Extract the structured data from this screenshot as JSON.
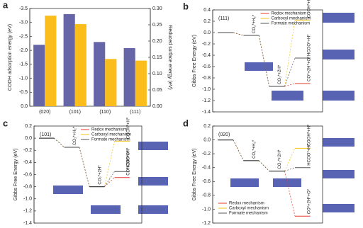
{
  "chart_data": [
    {
      "type": "bar",
      "panel": "a",
      "categories": [
        "(020)",
        "(101)",
        "(110)",
        "(111)"
      ],
      "y_label": "COOH adsorption energy (eV)",
      "y2_label": "Reduced surface energy (eV)",
      "ylim": [
        0,
        -3.5
      ],
      "yticks": [
        {
          "value": 0,
          "label": "0.0"
        },
        -0.5,
        {
          "value": -1,
          "label": "-1.0"
        },
        -1.5,
        {
          "value": -2,
          "label": "-2.0"
        },
        -2.5,
        {
          "value": -3,
          "label": "-3.0"
        },
        -3.5
      ],
      "y2lim": [
        0,
        0.3
      ],
      "y2ticks": [
        {
          "value": 0,
          "label": "0.00"
        },
        {
          "value": 0.05,
          "label": "0.05"
        },
        {
          "value": 0.1,
          "label": "0.10"
        },
        {
          "value": 0.15,
          "label": "0.15"
        },
        {
          "value": 0.2,
          "label": "0.20"
        },
        {
          "value": 0.25,
          "label": "0.25"
        },
        {
          "value": 0.3,
          "label": "0.30"
        }
      ],
      "series": [
        {
          "color": "#6565a8",
          "values": [
            -2.2,
            -3.3,
            -2.3,
            -2.08
          ]
        },
        {
          "color": "#fbbd1b",
          "values": [
            0.278,
            0.252,
            0.145,
            0.14
          ],
          "axis": "y2"
        }
      ]
    },
    {
      "type": "energy",
      "panel": "b",
      "annotation": "(111)",
      "y_label": "Gibbs Free Energy (eV)",
      "ylim": [
        -1.4,
        0.4
      ],
      "yticks": [
        0.4,
        0.2,
        {
          "value": 0,
          "label": "0.0"
        },
        -0.2,
        -0.4,
        -0.6,
        -0.8,
        {
          "value": -1,
          "label": "-1.0"
        },
        -1.2,
        -1.4
      ],
      "categories": [
        null,
        "CO₂*+H₂*",
        "CO₂*+2H*",
        null
      ],
      "legend": "upper center",
      "series": [
        {
          "name": "Redox mechanism",
          "color": "#e53a2c",
          "values": [
            0,
            -0.05,
            -0.95,
            -0.9
          ],
          "end_label": "CO*+2H*+O*"
        },
        {
          "name": "Carboxyl mechanism",
          "color": "#f2c21a",
          "values": [
            0,
            -0.05,
            -0.95,
            0.22
          ],
          "end_label": "COOH*+H*"
        },
        {
          "name": "Formate mechanism",
          "color": "#555555",
          "values": [
            0,
            -0.05,
            -0.95,
            -0.45
          ],
          "end_label": "HCOO*+H*"
        }
      ]
    },
    {
      "type": "energy",
      "panel": "c",
      "annotation": "(101)",
      "y_label": "Gibbs Free Energy (eV)",
      "ylim": [
        -1.4,
        0.2
      ],
      "yticks": [
        0.2,
        {
          "value": 0,
          "label": "0.0"
        },
        -0.2,
        -0.4,
        -0.6,
        -0.8,
        {
          "value": -1,
          "label": "-1.0"
        },
        -1.2,
        -1.4
      ],
      "categories": [
        null,
        "CO₂*+H₂*",
        "CO₂*+2H*",
        null
      ],
      "legend": "upper center",
      "series": [
        {
          "name": "Redox mechanism",
          "color": "#e53a2c",
          "values": [
            0,
            -0.15,
            -0.8,
            -0.65
          ],
          "end_label": "CO*+2H*+O*"
        },
        {
          "name": "Carboxyl mechanism",
          "color": "#f2c21a",
          "values": [
            0,
            -0.15,
            -0.8,
            -0.05
          ],
          "end_label": "COOH*+H*"
        },
        {
          "name": "Formate mechanism",
          "color": "#555555",
          "values": [
            0,
            -0.15,
            -0.8,
            -0.55
          ],
          "end_label": "HCOO*+H*"
        }
      ]
    },
    {
      "type": "energy",
      "panel": "d",
      "annotation": "(020)",
      "y_label": "Gibbs Free Energy (eV)",
      "ylim": [
        -1.2,
        0.2
      ],
      "yticks": [
        0.2,
        {
          "value": 0,
          "label": "0.0"
        },
        -0.2,
        -0.4,
        -0.6,
        -0.8,
        {
          "value": -1,
          "label": "-1.0"
        },
        -1.2
      ],
      "categories": [
        null,
        "CO₂*+H₂*",
        "CO₂*+2H*",
        null
      ],
      "legend": "lower left",
      "series": [
        {
          "name": "Redox mechanism",
          "color": "#e53a2c",
          "values": [
            0,
            -0.3,
            -0.45,
            -1.1
          ],
          "end_label": "CO*+2H*+O*"
        },
        {
          "name": "Carboxyl mechanism",
          "color": "#f2c21a",
          "values": [
            0,
            -0.3,
            -0.45,
            -0.12
          ],
          "end_label": "COOH*+H*"
        },
        {
          "name": "Formate mechanism",
          "color": "#555555",
          "values": [
            0,
            -0.3,
            -0.45,
            -0.4
          ],
          "end_label": "HCOO*+H*"
        }
      ]
    }
  ]
}
